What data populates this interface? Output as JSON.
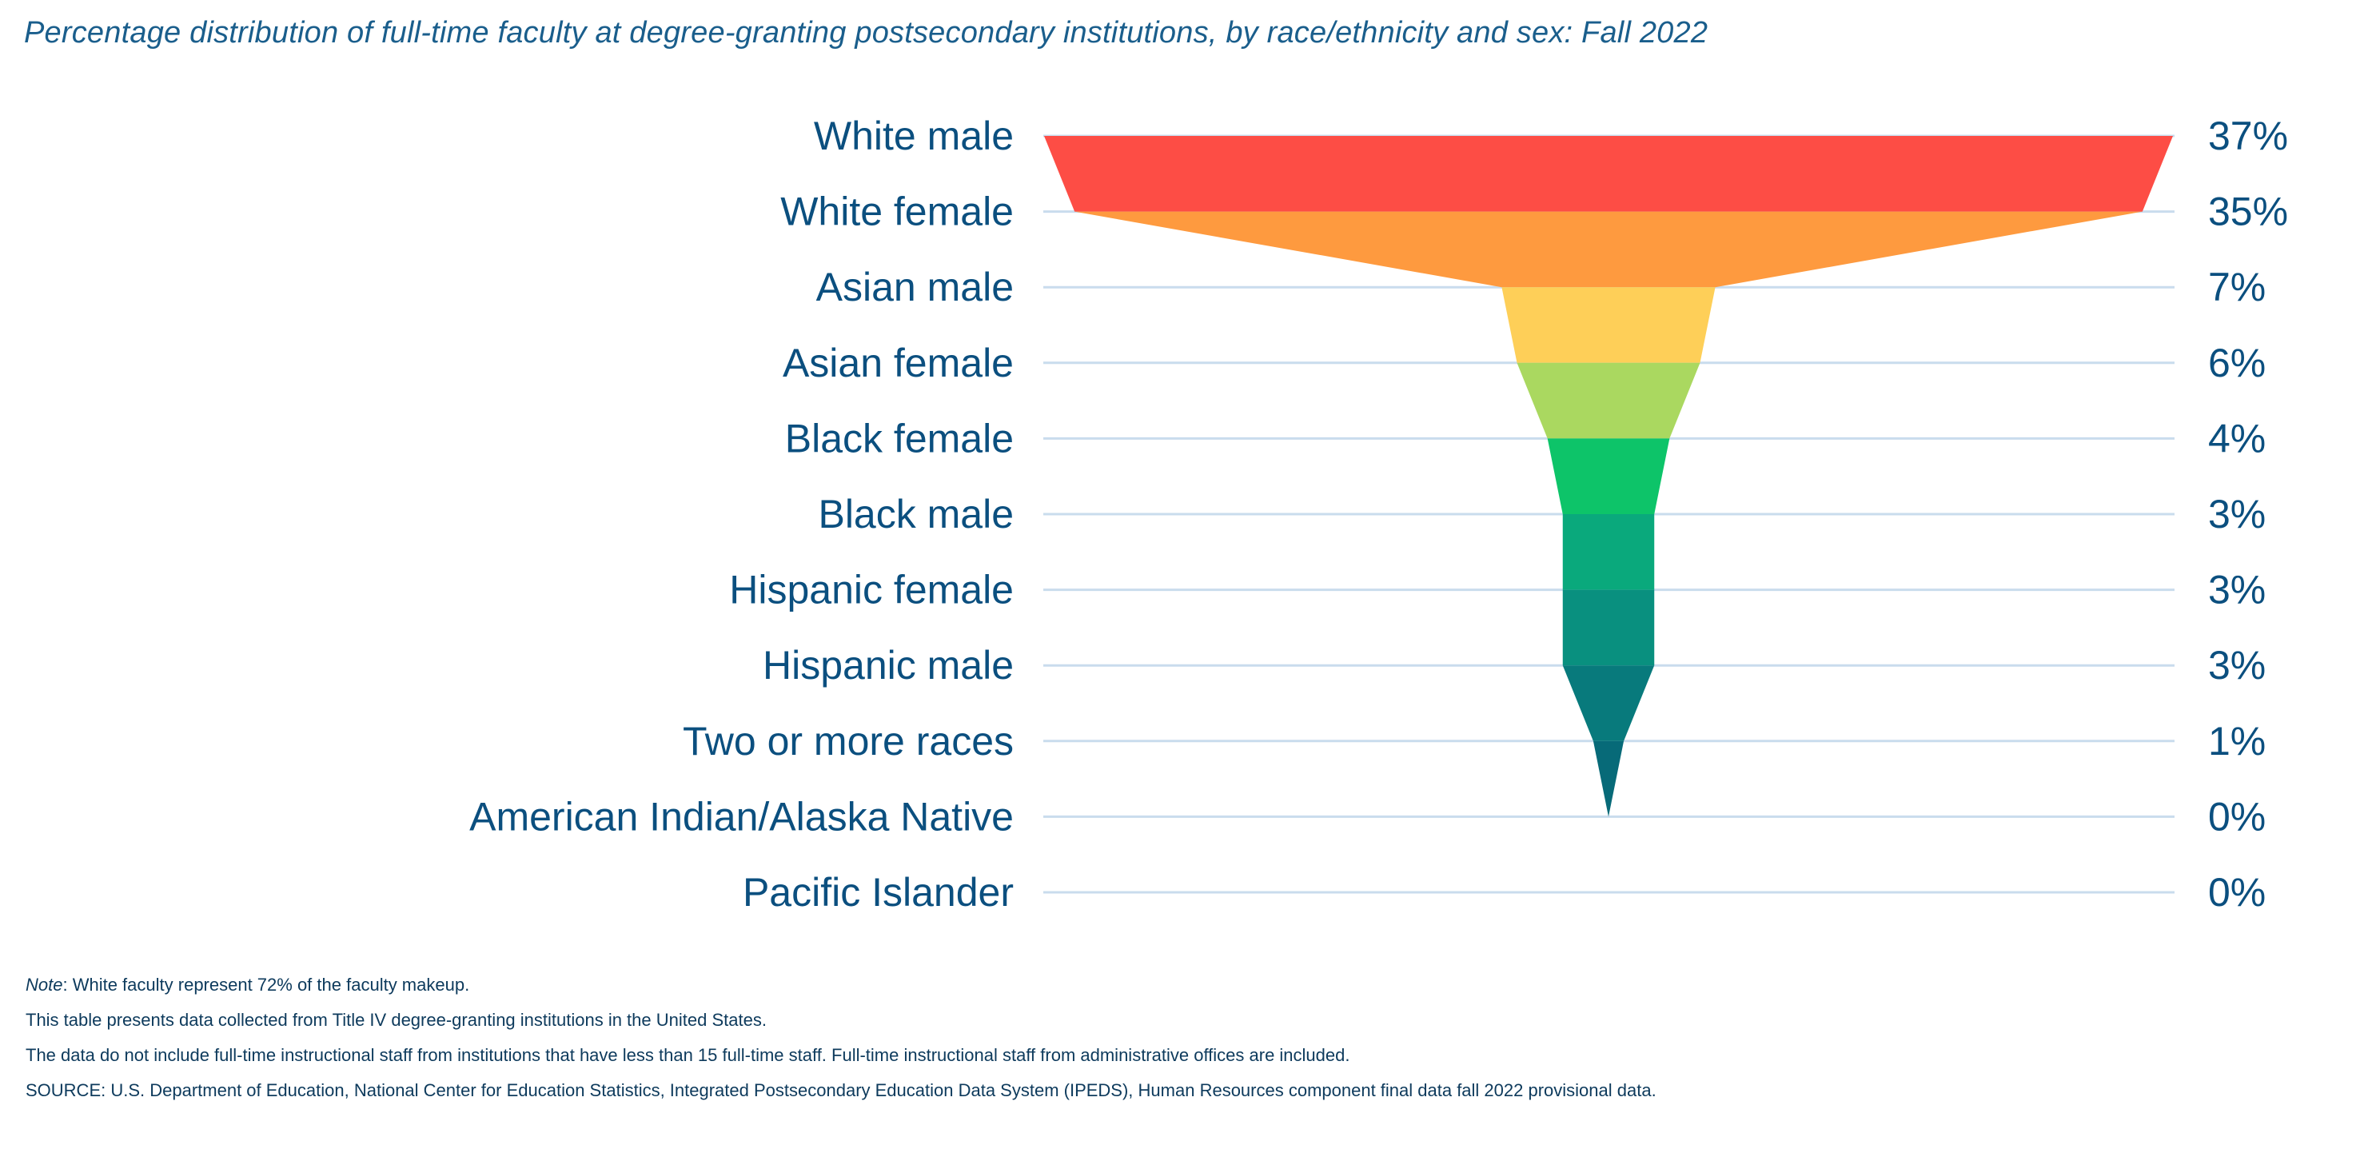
{
  "title": "Percentage distribution of full-time faculty at degree-granting postsecondary institutions, by race/ethnicity and sex: Fall 2022",
  "chart_data": {
    "type": "funnel",
    "categories": [
      "White male",
      "White female",
      "Asian male",
      "Asian female",
      "Black female",
      "Black male",
      "Hispanic female",
      "Hispanic male",
      "Two or more races",
      "American Indian/Alaska Native",
      "Pacific Islander"
    ],
    "values": [
      37,
      35,
      7,
      6,
      4,
      3,
      3,
      3,
      1,
      0,
      0
    ],
    "value_labels": [
      "37%",
      "35%",
      "7%",
      "6%",
      "4%",
      "3%",
      "3%",
      "3%",
      "1%",
      "0%",
      "0%"
    ],
    "unit": "%",
    "colors": [
      "#fd4d45",
      "#fe9a3f",
      "#fecf58",
      "#aad860",
      "#0dc469",
      "#0aa97c",
      "#09907f",
      "#087a7c",
      "#076a78",
      "#065f74"
    ],
    "grid": true,
    "gridline_color": "#c9dced"
  },
  "notes": {
    "note_prefix": "Note",
    "note_text": ": White faculty represent 72% of the faculty makeup.",
    "line2": "This table presents data collected from Title IV degree-granting institutions in the United States.",
    "line3": "The data do not include full-time instructional staff from institutions that have less than 15 full-time staff. Full-time instructional staff from administrative offices are included.",
    "source": "SOURCE: U.S. Department of Education, National Center for Education Statistics, Integrated Postsecondary Education Data System (IPEDS), Human Resources component final data fall 2022 provisional data."
  }
}
